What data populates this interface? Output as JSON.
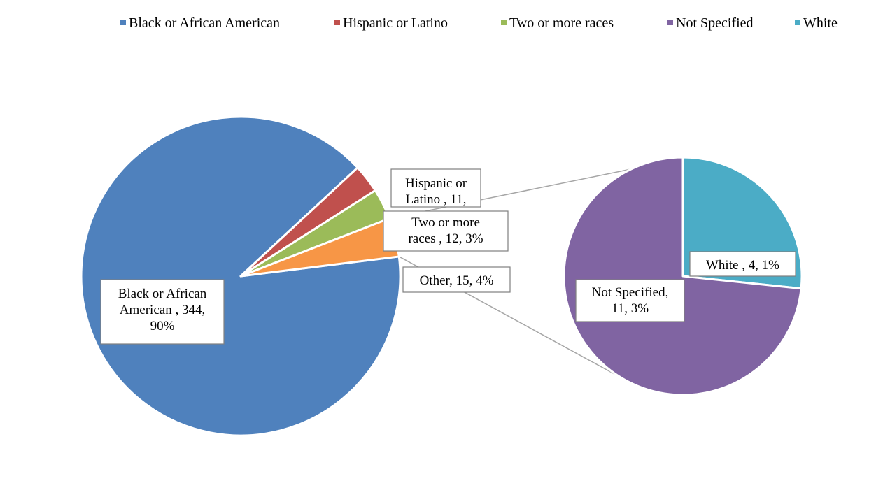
{
  "chart_data": {
    "type": "pie",
    "subtype": "pie-of-pie",
    "title": "",
    "legend": {
      "position": "top",
      "entries": [
        {
          "label": "Black or African American",
          "color": "#4F81BD"
        },
        {
          "label": "Hispanic or Latino",
          "color": "#C0504D"
        },
        {
          "label": "Two or more races",
          "color": "#9BBB59"
        },
        {
          "label": "Not Specified",
          "color": "#8064A2"
        },
        {
          "label": "White",
          "color": "#4BACC6"
        }
      ]
    },
    "main_pie": {
      "slices": [
        {
          "name": "Black or African American",
          "value": 344,
          "percent": "90%",
          "color": "#4F81BD",
          "label_lines": [
            "Black or African",
            "American , 344,",
            "90%"
          ]
        },
        {
          "name": "Hispanic or Latino",
          "value": 11,
          "percent": "3%",
          "color": "#C0504D",
          "label_lines": [
            "Hispanic or",
            "Latino , 11,"
          ]
        },
        {
          "name": "Two or more races",
          "value": 12,
          "percent": "3%",
          "color": "#9BBB59",
          "label_lines": [
            "Two or more",
            "races , 12, 3%"
          ]
        },
        {
          "name": "Other",
          "value": 15,
          "percent": "4%",
          "color": "#F79646",
          "label_lines": [
            "Other, 15, 4%"
          ]
        }
      ]
    },
    "secondary_pie": {
      "slices": [
        {
          "name": "White",
          "value": 4,
          "percent": "1%",
          "color": "#4BACC6",
          "label_lines": [
            "White , 4, 1%"
          ]
        },
        {
          "name": "Not Specified",
          "value": 11,
          "percent": "3%",
          "color": "#8064A2",
          "label_lines": [
            "Not Specified,",
            "11, 3%"
          ]
        }
      ]
    }
  }
}
